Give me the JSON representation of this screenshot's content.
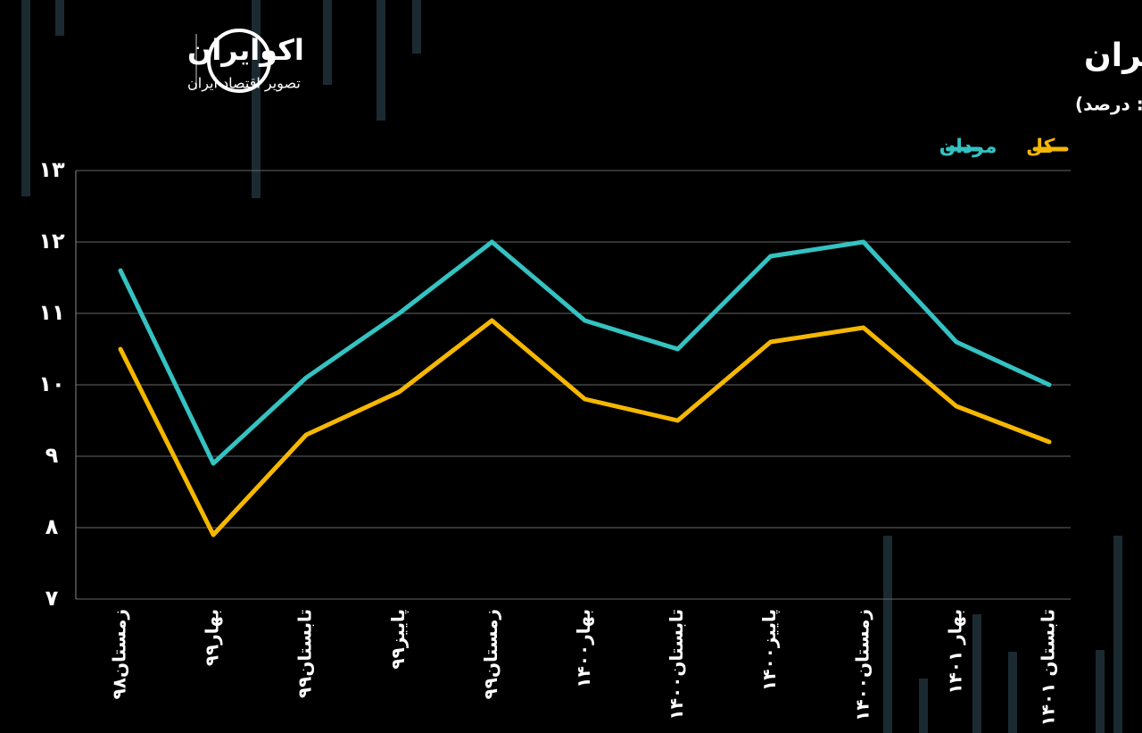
{
  "chart_data": {
    "type": "line",
    "title": "نرخ اشتغال ناقص مردان در اقتصاد ایران",
    "subtitle": "(واحد: درصد)",
    "brand": "اکوایران",
    "brand_tagline": "تصویر اقتصاد ایران",
    "categories": [
      "زمستان۹۸",
      "بهار۹۹",
      "تابستان۹۹",
      "پاییز۹۹",
      "زمستان۹۹",
      "بهار۱۴۰۰",
      "تابستان۱۴۰۰",
      "پاییز۱۴۰۰",
      "زمستان۱۴۰۰",
      "بهار ۱۴۰۱",
      "تابستان ۱۴۰۱"
    ],
    "series": [
      {
        "name": "مردان",
        "color": "#35c2c2",
        "values": [
          11.6,
          8.9,
          10.1,
          11.0,
          12.0,
          10.9,
          10.5,
          11.8,
          12.0,
          10.6,
          10.0
        ]
      },
      {
        "name": "کل",
        "color": "#f5b700",
        "values": [
          10.5,
          7.9,
          9.3,
          9.9,
          10.9,
          9.8,
          9.5,
          10.6,
          10.8,
          9.7,
          9.2
        ]
      }
    ],
    "ylim": [
      7,
      13
    ],
    "yticks": [
      {
        "value": 7,
        "label": "۷"
      },
      {
        "value": 8,
        "label": "۸"
      },
      {
        "value": 9,
        "label": "۹"
      },
      {
        "value": 10,
        "label": "۱۰"
      },
      {
        "value": 11,
        "label": "۱۱"
      },
      {
        "value": 12,
        "label": "۱۲"
      },
      {
        "value": 13,
        "label": "۱۳"
      }
    ],
    "grid": true
  }
}
